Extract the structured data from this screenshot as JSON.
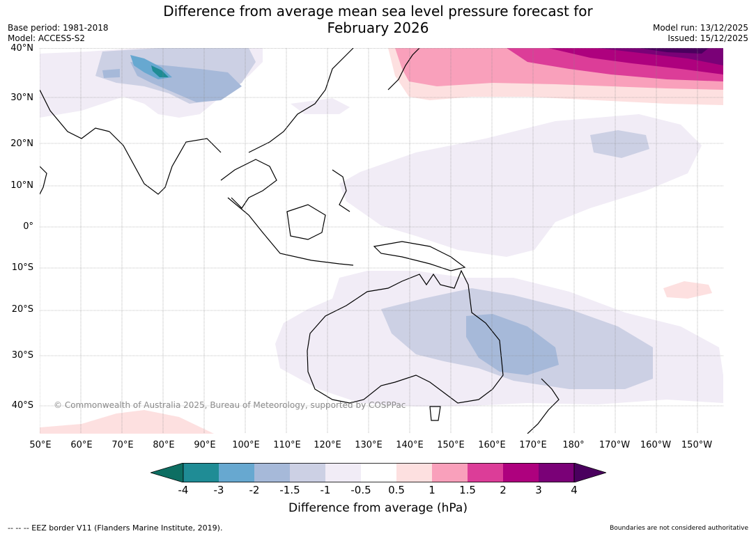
{
  "title": {
    "line1": "Difference from average mean sea level pressure forecast for",
    "line2": "February 2026"
  },
  "meta": {
    "base_period": "Base period: 1981-2018",
    "model": "Model: ACCESS-S2",
    "model_run": "Model run: 13/12/2025",
    "issued": "Issued: 15/12/2025"
  },
  "map": {
    "lat_labels": [
      "40°N",
      "30°N",
      "20°N",
      "10°N",
      "0°",
      "10°S",
      "20°S",
      "30°S",
      "40°S"
    ],
    "lon_labels": [
      "50°E",
      "60°E",
      "70°E",
      "80°E",
      "90°E",
      "100°E",
      "110°E",
      "120°E",
      "130°E",
      "140°E",
      "150°E",
      "160°E",
      "170°E",
      "180°",
      "170°W",
      "160°W",
      "150°W"
    ],
    "copyright": "© Commonwealth of Australia 2025, Bureau of Meteorology, supported by COSPPac"
  },
  "colorbar": {
    "title": "Difference from average (hPa)",
    "ticks": [
      "-4",
      "-3",
      "-2",
      "-1.5",
      "-1",
      "-0.5",
      "0.5",
      "1",
      "1.5",
      "2",
      "3",
      "4"
    ],
    "colors": {
      "lt-4": "#0d6e62",
      "-4_-3": "#1f8c95",
      "-3_-2": "#67a8d0",
      "-2_-1.5": "#a6b9d9",
      "-1.5_-1": "#ccd0e4",
      "-1_-0.5": "#f1ecf6",
      "-0.5_0.5": "#ffffff",
      "0.5_1": "#fde0e0",
      "1_1.5": "#f9a0bb",
      "1.5_2": "#dc3d98",
      "2_3": "#ae017e",
      "3_4": "#7a0177",
      "gt4": "#4a005e"
    }
  },
  "footer": {
    "eez": "--  --  -- EEZ border V11 (Flanders Marine Institute, 2019).",
    "disclaimer": "Boundaries are not considered authoritative"
  }
}
